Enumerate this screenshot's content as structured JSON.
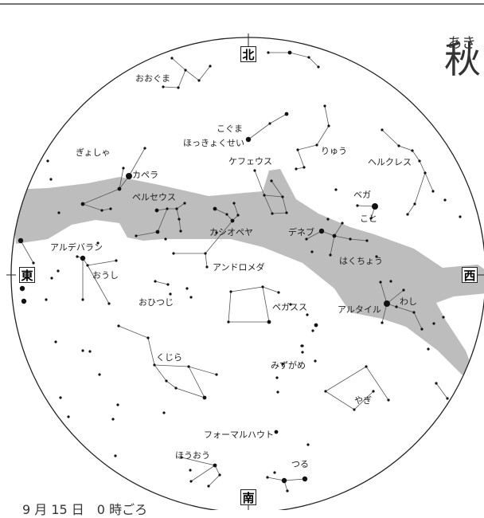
{
  "map": {
    "season_ruby": "あき",
    "season_title": "秋",
    "date_caption": "9 月 15 日　0 時ごろ",
    "directions": {
      "north": "北",
      "south": "南",
      "east": "東",
      "west": "西"
    },
    "colors": {
      "milky_way": "#bdbdbd",
      "horizon": "#222222",
      "lines": "#555555",
      "stars": "#111111"
    }
  },
  "labels": {
    "ooguma": "おおぐま",
    "koguma": "こぐま",
    "hokkyokusei": "ほっきょくせい",
    "ryuu": "りゅう",
    "herukuresu": "ヘルクレス",
    "kefeusu": "ケフェウス",
    "gyosha": "ぎょしゃ",
    "kapera": "カペラ",
    "beruseusu": "ペルセウス",
    "bega": "ベガ",
    "koto": "こと",
    "kashiopeya": "カシオペヤ",
    "denebu": "デネブ",
    "arudebaran": "アルデバラン",
    "oushi": "おうし",
    "andoromeda": "アンドロメダ",
    "hakuchou": "はくちょう",
    "ohitsuji": "おひつじ",
    "pegasusu": "ペガスス",
    "arutairu": "アルタイル",
    "washi": "わし",
    "kujira": "くじら",
    "mizugame": "みずがめ",
    "yagi": "やぎ",
    "foumaruhauto": "フォーマルハウト",
    "houou": "ほうおう",
    "tsuru": "つる"
  }
}
